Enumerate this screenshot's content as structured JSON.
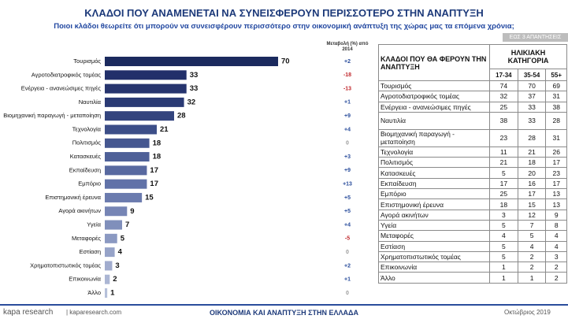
{
  "chart_data": {
    "type": "bar",
    "title": "ΚΛΑΔΟΙ ΠΟΥ ΑΝΑΜΕΝΕΤΑΙ ΝΑ ΣΥΝΕΙΣΦΕΡΟΥΝ ΠΕΡΙΣΣΟΤΕΡΟ ΣΤΗΝ ΑΝΑΠΤΥΞΗ",
    "subtitle": "Ποιοι κλάδοι θεωρείτε ότι μπορούν να συνεισφέρουν περισσότερο στην οικονομική ανάπτυξη της χώρας μας τα επόμενα χρόνια;",
    "note": "ΕΩΣ 3 ΑΠΑΝΤΗΣΕΙΣ",
    "categories": [
      "Τουρισμός",
      "Αγροτοδιατροφικός τομέας",
      "Ενέργεια - ανανεώσιμες πηγές",
      "Ναυτιλία",
      "Βιομηχανική παραγωγή - μεταποίηση",
      "Τεχνολογία",
      "Πολιτισμός",
      "Κατασκευές",
      "Εκπαίδευση",
      "Εμπόριο",
      "Επιστημονική έρευνα",
      "Αγορά ακινήτων",
      "Υγεία",
      "Μεταφορές",
      "Εστίαση",
      "Χρηματοπιστωτικός τομέας",
      "Επικοινωνία",
      "Άλλο"
    ],
    "values": [
      70,
      33,
      33,
      32,
      28,
      21,
      18,
      18,
      17,
      17,
      15,
      9,
      7,
      5,
      4,
      3,
      2,
      1
    ],
    "colors": [
      "#1b2a5e",
      "#22306a",
      "#26346e",
      "#2a3a74",
      "#33447e",
      "#3c4e88",
      "#455790",
      "#4e6098",
      "#5869a0",
      "#6172a8",
      "#6b7bae",
      "#7685b5",
      "#808fbb",
      "#8b99c2",
      "#96a3c8",
      "#a1acce",
      "#abb6d4",
      "#b6c0da"
    ],
    "change": {
      "header": "Μεταβολή (%) από 2014",
      "values": [
        2,
        -18,
        -13,
        1,
        9,
        4,
        0,
        3,
        9,
        13,
        5,
        5,
        4,
        -5,
        0,
        2,
        1,
        0
      ],
      "value_labels": [
        "+2",
        "-18",
        "-13",
        "+1",
        "+9",
        "+4",
        "0",
        "+3",
        "+9",
        "+13",
        "+5",
        "+5",
        "+4",
        "-5",
        "0",
        "+2",
        "+1",
        "0"
      ],
      "colors": {
        "positive": "#2a4d9c",
        "negative": "#c0282d",
        "zero": "#9a9a9a"
      }
    }
  },
  "table": {
    "header": {
      "name": "ΚΛΑΔΟΙ ΠΟΥ ΘΑ ΦΕΡΟΥΝ ΤΗΝ ΑΝΑΠΤΥΞΗ",
      "group": "ΗΛΙΚΙΑΚΗ ΚΑΤΗΓΟΡΙΑ",
      "columns": [
        "17-34",
        "35-54",
        "55+"
      ]
    },
    "rows": [
      [
        "Τουρισμός",
        74,
        70,
        69
      ],
      [
        "Αγροτοδιατροφικός τομέας",
        32,
        37,
        31
      ],
      [
        "Ενέργεια - ανανεώσιμες πηγές",
        25,
        33,
        38
      ],
      [
        "Ναυτιλία",
        38,
        33,
        28
      ],
      [
        "Βιομηχανική παραγωγή - μεταποίηση",
        23,
        28,
        31
      ],
      [
        "Τεχνολογία",
        11,
        21,
        26
      ],
      [
        "Πολιτισμός",
        21,
        18,
        17
      ],
      [
        "Κατασκευές",
        5,
        20,
        23
      ],
      [
        "Εκπαίδευση",
        17,
        16,
        17
      ],
      [
        "Εμπόριο",
        25,
        17,
        13
      ],
      [
        "Επιστημονική έρευνα",
        18,
        15,
        13
      ],
      [
        "Αγορά ακινήτων",
        3,
        12,
        9
      ],
      [
        "Υγεία",
        5,
        7,
        8
      ],
      [
        "Μεταφορές",
        4,
        5,
        4
      ],
      [
        "Εστίαση",
        5,
        4,
        4
      ],
      [
        "Χρηματοπιστωτικός τομέας",
        5,
        2,
        3
      ],
      [
        "Επικοινωνία",
        1,
        2,
        2
      ],
      [
        "Άλλο",
        1,
        1,
        2
      ]
    ]
  },
  "footer": {
    "logo": "kapa research",
    "site": "| kaparesearch.com",
    "title": "ΟΙΚΟΝΟΜΙΑ ΚΑΙ ΑΝΑΠΤΥΞΗ ΣΤΗΝ ΕΛΛΑΔΑ",
    "date": "Οκτώβριος 2019"
  }
}
